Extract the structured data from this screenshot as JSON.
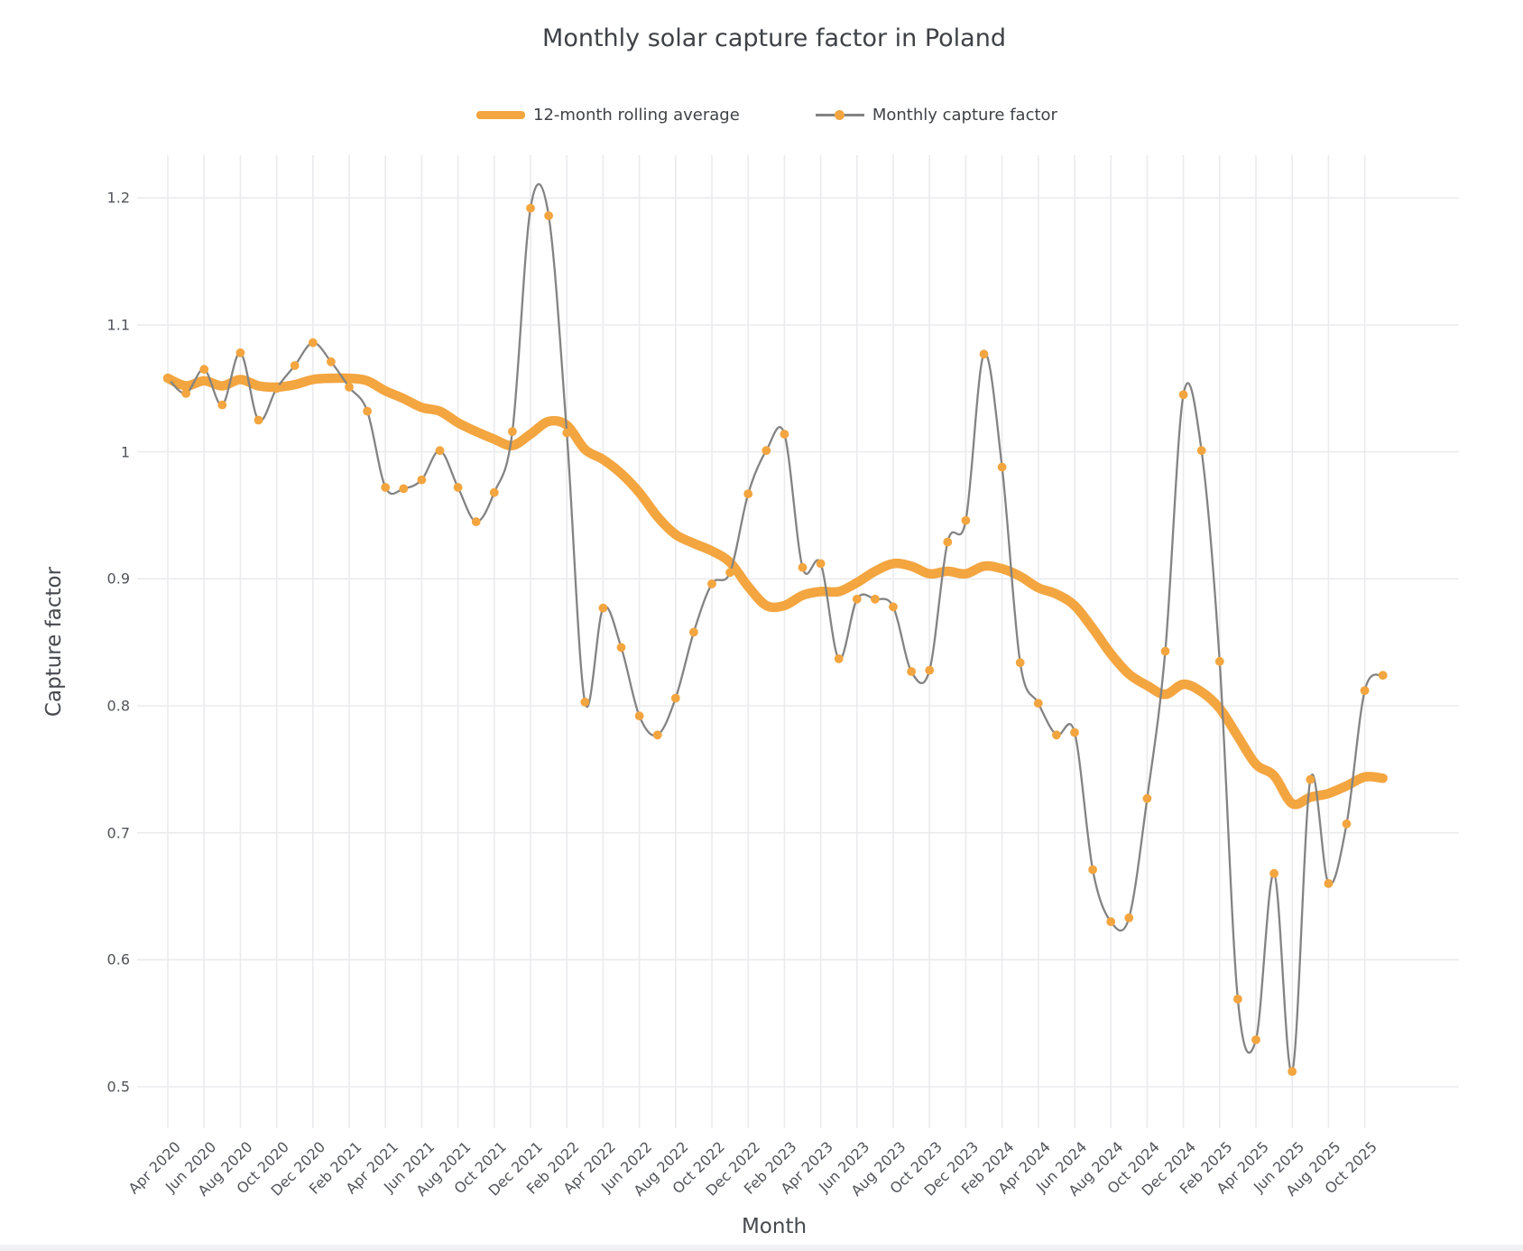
{
  "chart_data": {
    "type": "line",
    "title": "Monthly solar capture factor in Poland",
    "xlabel": "Month",
    "ylabel": "Capture factor",
    "grid": true,
    "legend_position": "top-center",
    "x_tick_every": 2,
    "x_tick_angle": -45,
    "x": [
      "Apr 2020",
      "May 2020",
      "Jun 2020",
      "Jul 2020",
      "Aug 2020",
      "Sep 2020",
      "Oct 2020",
      "Nov 2020",
      "Dec 2020",
      "Jan 2021",
      "Feb 2021",
      "Mar 2021",
      "Apr 2021",
      "May 2021",
      "Jun 2021",
      "Jul 2021",
      "Aug 2021",
      "Sep 2021",
      "Oct 2021",
      "Nov 2021",
      "Dec 2021",
      "Jan 2022",
      "Feb 2022",
      "Mar 2022",
      "Apr 2022",
      "May 2022",
      "Jun 2022",
      "Jul 2022",
      "Aug 2022",
      "Sep 2022",
      "Oct 2022",
      "Nov 2022",
      "Dec 2022",
      "Jan 2023",
      "Feb 2023",
      "Mar 2023",
      "Apr 2023",
      "May 2023",
      "Jun 2023",
      "Jul 2023",
      "Aug 2023",
      "Sep 2023",
      "Oct 2023",
      "Nov 2023",
      "Dec 2023",
      "Jan 2024",
      "Feb 2024",
      "Mar 2024",
      "Apr 2024",
      "May 2024",
      "Jun 2024",
      "Jul 2024",
      "Aug 2024",
      "Sep 2024",
      "Oct 2024",
      "Nov 2024",
      "Dec 2024",
      "Jan 2025",
      "Feb 2025",
      "Mar 2025",
      "Apr 2025",
      "May 2025",
      "Jun 2025",
      "Jul 2025",
      "Aug 2025",
      "Sep 2025",
      "Oct 2025",
      "Nov 2025"
    ],
    "series": [
      {
        "name": "12-month rolling average",
        "style": "thick-line",
        "color": "#f3a53f",
        "line_width": 10.5,
        "values": [
          1.058,
          1.052,
          1.056,
          1.052,
          1.057,
          1.052,
          1.051,
          1.053,
          1.057,
          1.058,
          1.058,
          1.056,
          1.048,
          1.042,
          1.035,
          1.032,
          1.023,
          1.016,
          1.01,
          1.005,
          1.014,
          1.024,
          1.021,
          1.002,
          0.994,
          0.983,
          0.968,
          0.949,
          0.935,
          0.928,
          0.922,
          0.913,
          0.894,
          0.879,
          0.879,
          0.887,
          0.89,
          0.89,
          0.897,
          0.906,
          0.912,
          0.91,
          0.904,
          0.906,
          0.904,
          0.91,
          0.908,
          0.902,
          0.893,
          0.888,
          0.879,
          0.861,
          0.841,
          0.825,
          0.816,
          0.809,
          0.817,
          0.811,
          0.798,
          0.776,
          0.754,
          0.745,
          0.723,
          0.728,
          0.731,
          0.737,
          0.744,
          0.743
        ]
      },
      {
        "name": "Monthly capture factor",
        "style": "line-marker",
        "line_color": "#838383",
        "line_width": 2.3,
        "marker_color": "#f3a53f",
        "marker_radius": 4.9,
        "values": [
          1.058,
          1.046,
          1.065,
          1.037,
          1.078,
          1.025,
          1.05,
          1.068,
          1.086,
          1.071,
          1.051,
          1.032,
          0.972,
          0.971,
          0.978,
          1.001,
          0.972,
          0.945,
          0.968,
          1.016,
          1.192,
          1.186,
          1.015,
          0.803,
          0.877,
          0.846,
          0.792,
          0.777,
          0.806,
          0.858,
          0.896,
          0.905,
          0.967,
          1.001,
          1.014,
          0.909,
          0.912,
          0.837,
          0.884,
          0.884,
          0.878,
          0.827,
          0.828,
          0.929,
          0.946,
          1.077,
          0.988,
          0.834,
          0.802,
          0.777,
          0.779,
          0.671,
          0.63,
          0.633,
          0.727,
          0.843,
          1.045,
          1.001,
          0.835,
          0.569,
          0.537,
          0.668,
          0.512,
          0.742,
          0.66,
          0.707,
          0.812,
          0.824
        ]
      }
    ],
    "y_axis": {
      "tick_values": [
        0.5,
        0.6,
        0.7,
        0.8,
        0.9,
        1.0,
        1.1,
        1.2
      ],
      "tick_labels": [
        "0.5",
        "0.6",
        "0.7",
        "0.8",
        "0.9",
        "1",
        "1.1",
        "1.2"
      ],
      "ylim": [
        0.467,
        1.234
      ]
    }
  },
  "colors": {
    "accent_orange": "#f3a53f",
    "series_gray": "#838383",
    "gridline": "#ebebee",
    "text_dark": "#3e4247",
    "text_tick": "#50545a"
  }
}
